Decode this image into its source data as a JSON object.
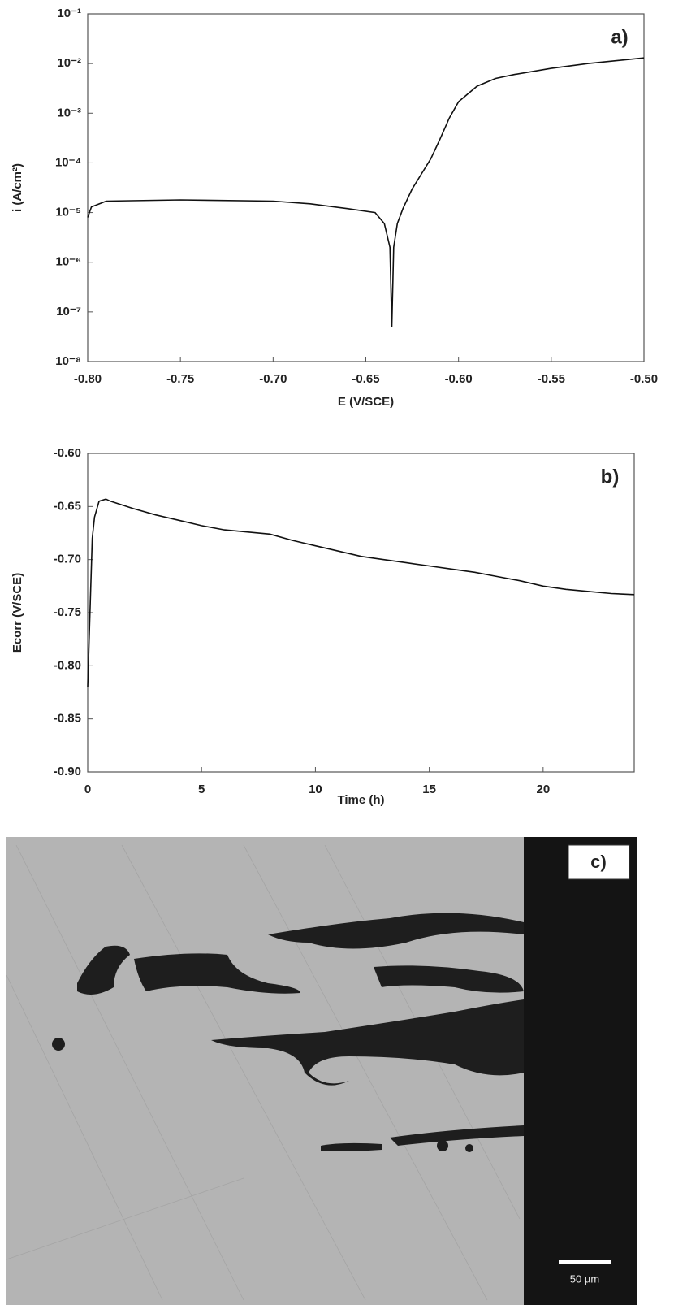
{
  "chart_data": [
    {
      "type": "line",
      "annotation": "a)",
      "xlabel": "E (V/SCE)",
      "ylabel": "i (A/cm²)",
      "log_y": true,
      "xlim": [
        -0.8,
        -0.5
      ],
      "xticks": [
        {
          "value": -0.8,
          "label": "-0.80"
        },
        {
          "value": -0.75,
          "label": "-0.75"
        },
        {
          "value": -0.7,
          "label": "-0.70"
        },
        {
          "value": -0.65,
          "label": "-0.65"
        },
        {
          "value": -0.6,
          "label": "-0.60"
        },
        {
          "value": -0.55,
          "label": "-0.55"
        },
        {
          "value": -0.5,
          "label": "-0.50"
        }
      ],
      "ylim": [
        1e-08,
        0.1
      ],
      "yticks": [
        {
          "value": 1e-08,
          "label": "10⁻⁸"
        },
        {
          "value": 1e-07,
          "label": "10⁻⁷"
        },
        {
          "value": 1e-06,
          "label": "10⁻⁶"
        },
        {
          "value": 1e-05,
          "label": "10⁻⁵"
        },
        {
          "value": 0.0001,
          "label": "10⁻⁴"
        },
        {
          "value": 0.001,
          "label": "10⁻³"
        },
        {
          "value": 0.01,
          "label": "10⁻²"
        },
        {
          "value": 0.1,
          "label": "10⁻¹"
        }
      ],
      "color": "#111",
      "x": [
        -0.8,
        -0.798,
        -0.79,
        -0.75,
        -0.7,
        -0.68,
        -0.66,
        -0.645,
        -0.64,
        -0.637,
        -0.636,
        -0.635,
        -0.633,
        -0.63,
        -0.625,
        -0.62,
        -0.615,
        -0.61,
        -0.605,
        -0.6,
        -0.59,
        -0.58,
        -0.57,
        -0.55,
        -0.53,
        -0.5
      ],
      "values": [
        8e-06,
        1.3e-05,
        1.7e-05,
        1.8e-05,
        1.7e-05,
        1.5e-05,
        1.2e-05,
        1e-05,
        6e-06,
        2e-06,
        5e-08,
        2e-06,
        6e-06,
        1.2e-05,
        3e-05,
        6e-05,
        0.00012,
        0.0003,
        0.0008,
        0.0017,
        0.0035,
        0.005,
        0.006,
        0.008,
        0.01,
        0.013
      ]
    },
    {
      "type": "line",
      "annotation": "b)",
      "xlabel": "Time (h)",
      "ylabel": "Ecorr (V/SCE)",
      "log_y": false,
      "xlim": [
        0,
        24
      ],
      "xticks": [
        0,
        5,
        10,
        15,
        20
      ],
      "ylim": [
        -0.9,
        -0.6
      ],
      "yticks": [
        {
          "value": -0.9,
          "label": "-0.90"
        },
        {
          "value": -0.85,
          "label": "-0.85"
        },
        {
          "value": -0.8,
          "label": "-0.80"
        },
        {
          "value": -0.75,
          "label": "-0.75"
        },
        {
          "value": -0.7,
          "label": "-0.70"
        },
        {
          "value": -0.65,
          "label": "-0.65"
        },
        {
          "value": -0.6,
          "label": "-0.60"
        }
      ],
      "color": "#111",
      "x": [
        0,
        0.1,
        0.2,
        0.3,
        0.5,
        0.8,
        1,
        2,
        3,
        4,
        5,
        6,
        7,
        8,
        9,
        10,
        11,
        12,
        13,
        14,
        15,
        16,
        17,
        18,
        19,
        20,
        21,
        22,
        23,
        24
      ],
      "values": [
        -0.82,
        -0.75,
        -0.68,
        -0.66,
        -0.645,
        -0.643,
        -0.645,
        -0.652,
        -0.658,
        -0.663,
        -0.668,
        -0.672,
        -0.674,
        -0.676,
        -0.682,
        -0.687,
        -0.692,
        -0.697,
        -0.7,
        -0.703,
        -0.706,
        -0.709,
        -0.712,
        -0.716,
        -0.72,
        -0.725,
        -0.728,
        -0.73,
        -0.732,
        -0.733
      ]
    }
  ],
  "micrograph": {
    "label": "c)",
    "scale_bar": "50 µm"
  }
}
